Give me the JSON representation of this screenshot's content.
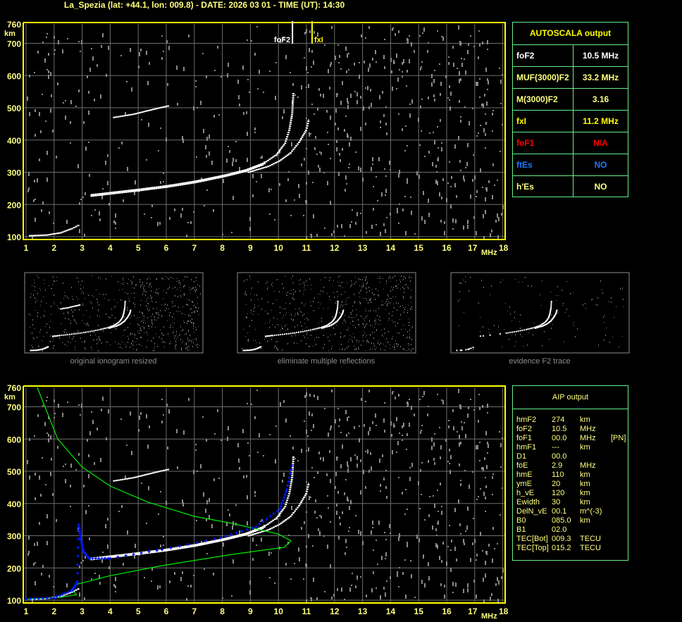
{
  "title": "La_Spezia (lat: +44.1, lon: 009.8) - DATE: 2026 03 01 - TIME (UT): 14:30",
  "colors": {
    "axis": "#ffff00",
    "grid": "#6e6e6e",
    "noise": "#8a8a8a",
    "trace": "#ffffff",
    "profile": "#00ee00",
    "fitted_trace": "#0018ff",
    "box_border": "#66ee88"
  },
  "markers": {
    "foF2_label": "foF2",
    "fxI_label": "fxI",
    "foF2_MHz": 10.5,
    "fxI_MHz": 11.2
  },
  "axes": {
    "y_unit": "km",
    "x_unit": "MHz",
    "y_ticks": [
      "760",
      "700",
      "600",
      "500",
      "400",
      "300",
      "200",
      "100"
    ],
    "x_ticks": [
      "1",
      "2",
      "3",
      "4",
      "5",
      "6",
      "7",
      "8",
      "9",
      "10",
      "11",
      "12",
      "13",
      "14",
      "15",
      "16",
      "17",
      "18"
    ]
  },
  "thumbnails": [
    {
      "caption": "original ionogram resized"
    },
    {
      "caption": "eliminate multiple reflections"
    },
    {
      "caption": "evidence F2 trace"
    }
  ],
  "autoscala": {
    "title": "AUTOSCALA output",
    "rows": [
      {
        "key": "foF2",
        "value": "10.5 MHz",
        "color": "#ffffff"
      },
      {
        "key": "MUF(3000)F2",
        "value": "33.2 MHz",
        "color": "#ffff80"
      },
      {
        "key": "M(3000)F2",
        "value": "3.16",
        "color": "#ffff80"
      },
      {
        "key": "fxI",
        "value": "11.2 MHz",
        "color": "#ffff00"
      },
      {
        "key": "foF1",
        "value": "N/A",
        "color": "#ff0000"
      },
      {
        "key": "ftEs",
        "value": "NO",
        "color": "#1e78ff"
      },
      {
        "key": "h'Es",
        "value": "NO",
        "color": "#ffff80"
      }
    ]
  },
  "aip": {
    "title": "AIP output",
    "rows": [
      [
        "hmF2",
        "274",
        "km",
        ""
      ],
      [
        "foF2",
        "10.5",
        "MHz",
        "[PN]"
      ],
      [
        "foF1",
        "00.0",
        "MHz",
        "[PN]"
      ],
      [
        "hmF1",
        "---",
        "km",
        ""
      ],
      [
        "D1",
        "00.0",
        "",
        ""
      ],
      [
        "foE",
        "2.9",
        "MHz",
        ""
      ],
      [
        "hmE",
        "110",
        "km",
        ""
      ],
      [
        "ymE",
        "20",
        "km",
        ""
      ],
      [
        "h_vE",
        "120",
        "km",
        ""
      ],
      [
        "Ewidth",
        "30",
        "km",
        ""
      ],
      [
        "DelN_vE",
        "00.1",
        "m^(-3)",
        ""
      ],
      [
        "B0",
        "085.0",
        "km",
        ""
      ],
      [
        "B1",
        "02.0",
        "",
        ""
      ],
      [
        "TEC[Bot]",
        "009.3",
        "TECU",
        ""
      ],
      [
        "TEC[Top]",
        "015.2",
        "TECU",
        ""
      ]
    ]
  },
  "chart_data": [
    {
      "type": "scatter",
      "panel": "top ionogram",
      "xlabel": "MHz",
      "ylabel": "km",
      "xlim": [
        1,
        18
      ],
      "ylim": [
        100,
        760
      ],
      "grid": true,
      "series": [
        {
          "role": "O trace",
          "points": [
            [
              3.3,
              228
            ],
            [
              4,
              235
            ],
            [
              5,
              245
            ],
            [
              6,
              256
            ],
            [
              7,
              270
            ],
            [
              8,
              288
            ],
            [
              8.8,
              305
            ],
            [
              9.4,
              325
            ],
            [
              9.9,
              355
            ],
            [
              10.2,
              390
            ],
            [
              10.35,
              430
            ],
            [
              10.45,
              480
            ],
            [
              10.5,
              550
            ]
          ]
        },
        {
          "role": "X trace",
          "points": [
            [
              8.9,
              300
            ],
            [
              9.6,
              318
            ],
            [
              10.0,
              335
            ],
            [
              10.4,
              360
            ],
            [
              10.7,
              393
            ],
            [
              10.95,
              430
            ],
            [
              11.05,
              465
            ]
          ]
        },
        {
          "role": "second hop",
          "points": [
            [
              4.1,
              470
            ],
            [
              4.8,
              480
            ],
            [
              5.5,
              495
            ],
            [
              6.1,
              507
            ]
          ]
        },
        {
          "role": "E trace",
          "points": [
            [
              1.1,
              103
            ],
            [
              1.7,
              105
            ],
            [
              2.2,
              112
            ],
            [
              2.6,
              125
            ],
            [
              2.9,
              138
            ]
          ]
        }
      ]
    },
    {
      "type": "line",
      "panel": "bottom ionogram with AIP profile",
      "xlabel": "MHz",
      "ylabel": "km",
      "xlim": [
        1,
        18
      ],
      "ylim": [
        100,
        760
      ],
      "grid": true,
      "series": [
        {
          "role": "electron density profile",
          "points": [
            [
              1.0,
              104
            ],
            [
              2.08,
              107
            ],
            [
              2.8,
              117
            ],
            [
              2.63,
              133
            ],
            [
              2.76,
              148
            ],
            [
              4.0,
              176
            ],
            [
              5.85,
              207
            ],
            [
              8.36,
              242
            ],
            [
              10.2,
              264
            ],
            [
              10.45,
              284
            ],
            [
              10.0,
              305
            ],
            [
              8.36,
              338
            ],
            [
              7.0,
              360
            ],
            [
              5.35,
              404
            ],
            [
              4.0,
              454
            ],
            [
              3.0,
              513
            ],
            [
              2.13,
              600
            ],
            [
              1.4,
              760
            ]
          ]
        },
        {
          "role": "fitted trace",
          "points": [
            [
              1.0,
              104
            ],
            [
              2.0,
              107
            ],
            [
              2.66,
              131
            ],
            [
              2.83,
              157
            ],
            [
              2.88,
              334
            ],
            [
              2.95,
              290
            ],
            [
              3.05,
              250
            ],
            [
              3.26,
              229
            ],
            [
              4.0,
              230
            ],
            [
              5.85,
              257
            ],
            [
              7.93,
              293
            ],
            [
              9.2,
              328
            ],
            [
              10.05,
              382
            ],
            [
              10.3,
              443
            ],
            [
              10.5,
              526
            ]
          ]
        }
      ]
    }
  ]
}
